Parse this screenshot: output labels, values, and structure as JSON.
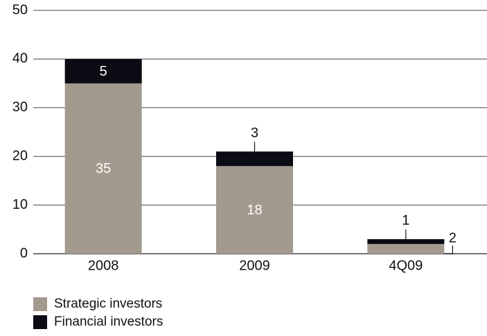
{
  "chart_data": {
    "type": "stacked_bar",
    "categories": [
      "2008",
      "2009",
      "4Q09"
    ],
    "series": [
      {
        "name": "Strategic investors",
        "color": "#a39a8e",
        "values": [
          35,
          18,
          2
        ]
      },
      {
        "name": "Financial investors",
        "color": "#0b0b14",
        "values": [
          5,
          3,
          1
        ]
      }
    ],
    "ylim": [
      0,
      50
    ],
    "yticks": [
      0,
      10,
      20,
      30,
      40,
      50
    ],
    "grid": true
  }
}
